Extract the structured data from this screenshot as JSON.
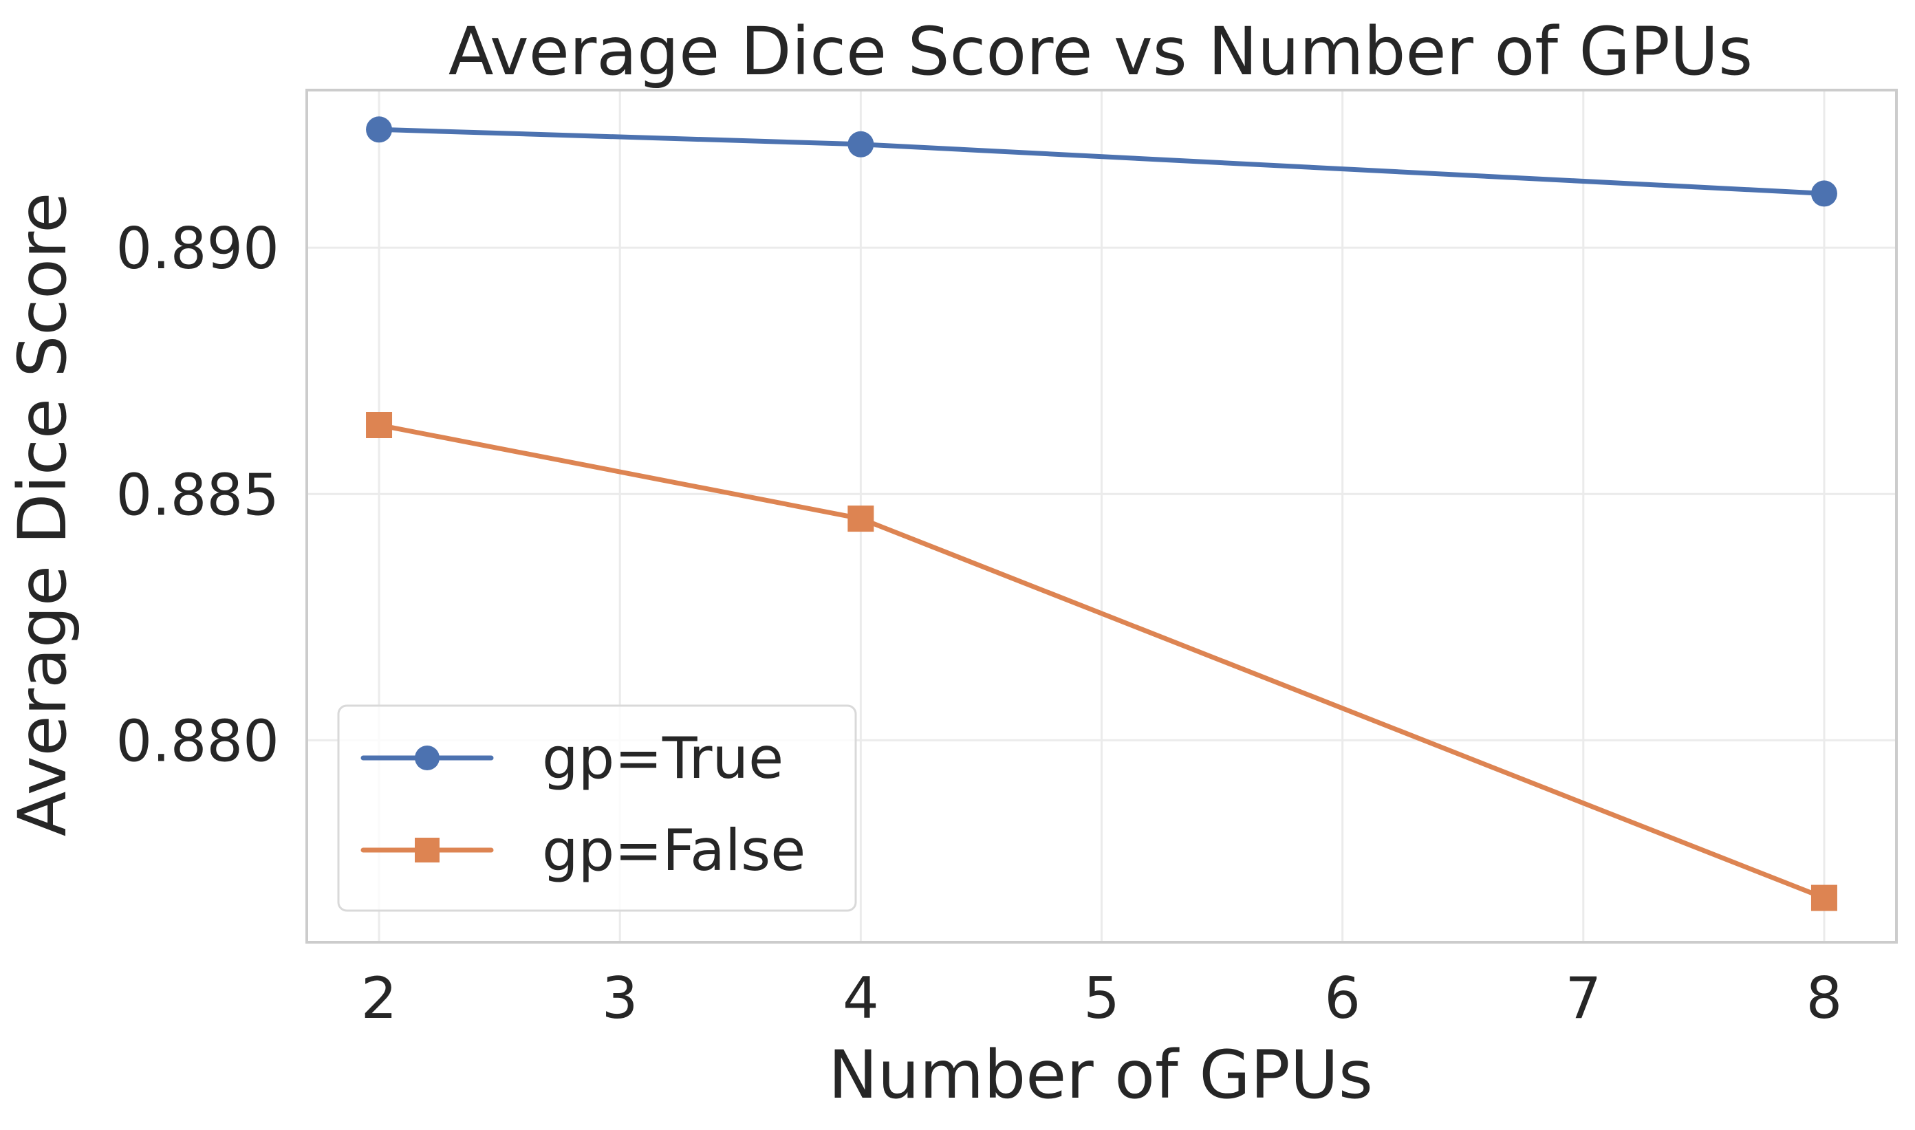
{
  "chart_data": {
    "type": "line",
    "title": "Average Dice Score vs Number of GPUs",
    "xlabel": "Number of GPUs",
    "ylabel": "Average Dice Score",
    "xlim": [
      1.7,
      8.3
    ],
    "ylim": [
      0.8759,
      0.8932
    ],
    "x_ticks": [
      2,
      3,
      4,
      5,
      6,
      7,
      8
    ],
    "x_tick_labels": [
      "2",
      "3",
      "4",
      "5",
      "6",
      "7",
      "8"
    ],
    "y_ticks": [
      0.88,
      0.885,
      0.89
    ],
    "y_tick_labels": [
      "0.880",
      "0.885",
      "0.890"
    ],
    "grid": true,
    "legend_position": "lower-left",
    "series": [
      {
        "name": "gp=True",
        "x": [
          2,
          4,
          8
        ],
        "values": [
          0.8924,
          0.8921,
          0.8911
        ],
        "color": "#4c72b0",
        "marker": "circle"
      },
      {
        "name": "gp=False",
        "x": [
          2,
          4,
          8
        ],
        "values": [
          0.8864,
          0.8845,
          0.8768
        ],
        "color": "#dd8452",
        "marker": "square"
      }
    ]
  }
}
